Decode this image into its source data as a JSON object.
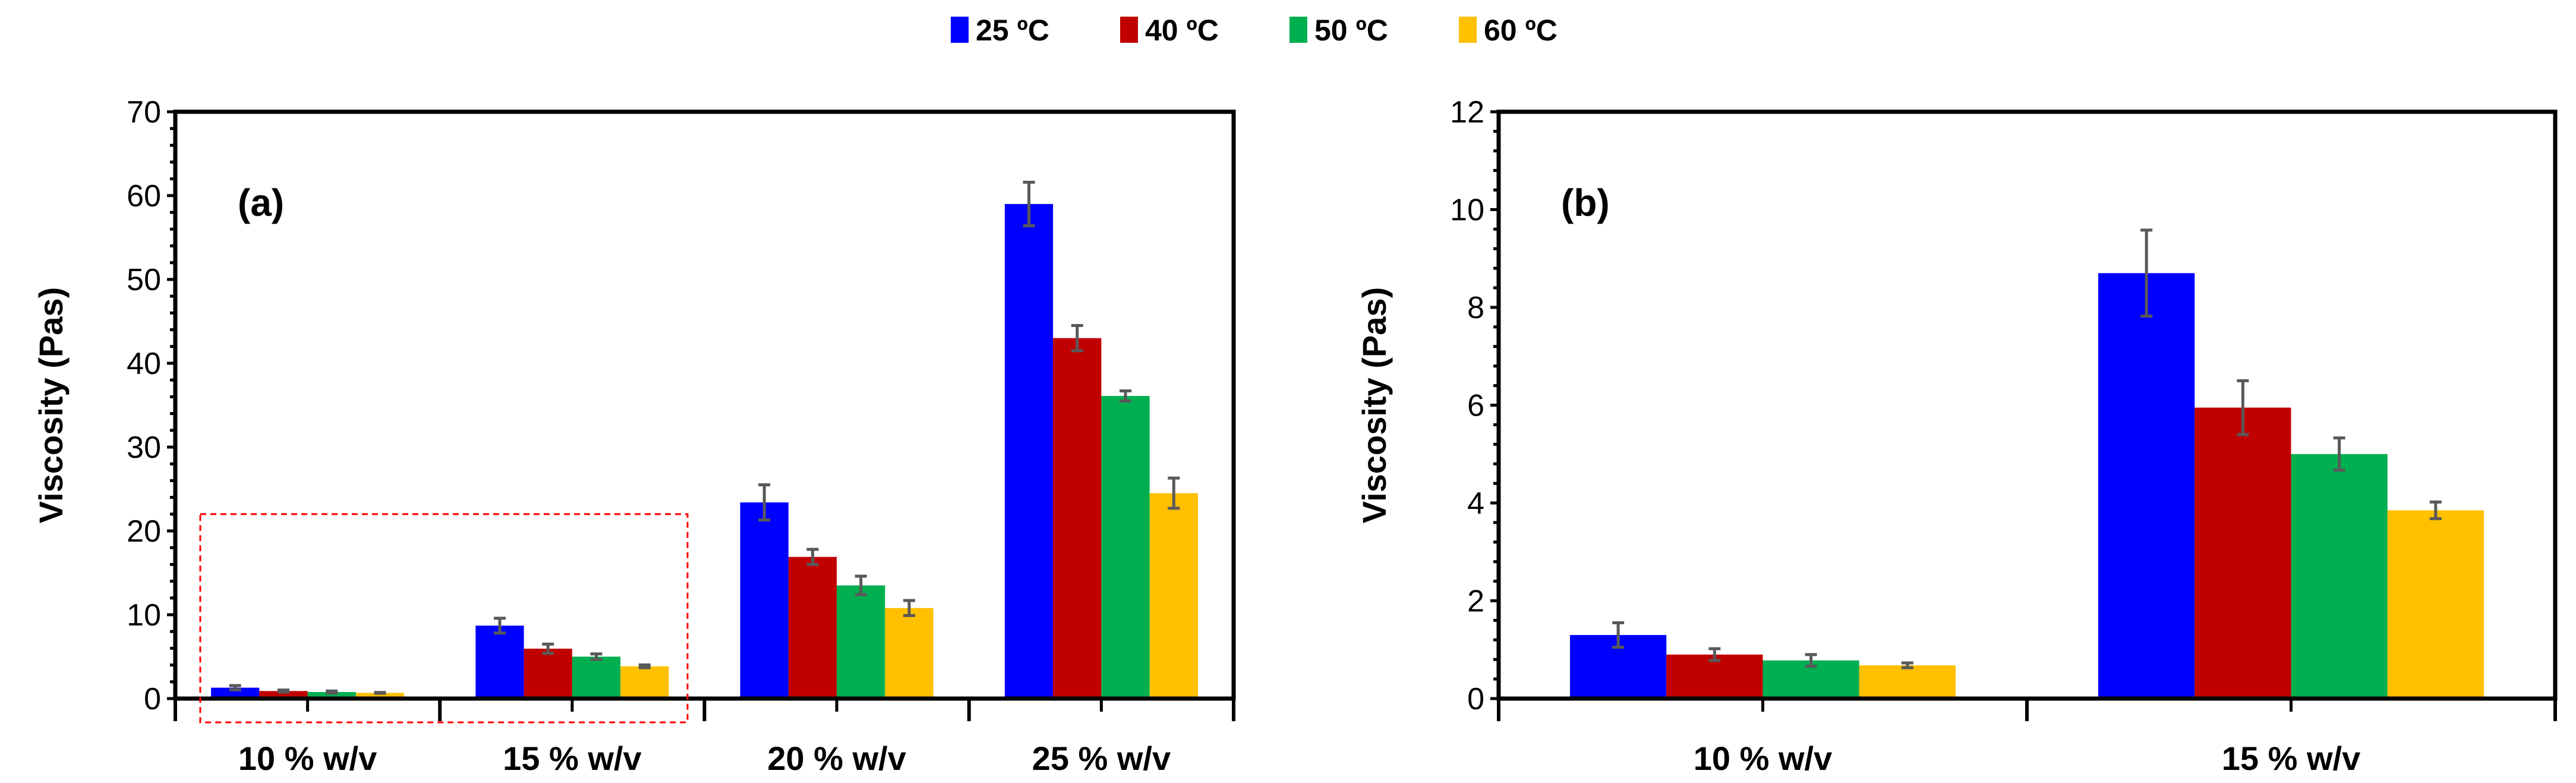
{
  "legend": [
    {
      "label": "25 ºC",
      "color": "#0000FF"
    },
    {
      "label": "40 ºC",
      "color": "#C00000"
    },
    {
      "label": "50 ºC",
      "color": "#00B050"
    },
    {
      "label": "60 ºC",
      "color": "#FFC000"
    }
  ],
  "chart_data": [
    {
      "type": "bar",
      "panel_label": "(a)",
      "ylabel": "Viscosity (Pas)",
      "xlabel": "",
      "ylim": [
        0,
        70
      ],
      "yticks": [
        0,
        10,
        20,
        30,
        40,
        50,
        60,
        70
      ],
      "categories": [
        "10 % w/v",
        "15 % w/v",
        "20 % w/v",
        "25 % w/v"
      ],
      "series": [
        {
          "name": "25 ºC",
          "values": [
            1.3,
            8.7,
            23.4,
            59.0
          ],
          "errors": [
            0.25,
            0.88,
            2.1,
            2.6
          ]
        },
        {
          "name": "40 ºC",
          "values": [
            0.9,
            5.95,
            16.9,
            43.0
          ],
          "errors": [
            0.12,
            0.55,
            0.9,
            1.5
          ]
        },
        {
          "name": "50 ºC",
          "values": [
            0.78,
            5.0,
            13.5,
            36.1
          ],
          "errors": [
            0.12,
            0.33,
            1.1,
            0.6
          ]
        },
        {
          "name": "60 ºC",
          "values": [
            0.68,
            3.85,
            10.8,
            24.5
          ],
          "errors": [
            0.05,
            0.17,
            0.9,
            1.8
          ]
        }
      ],
      "annotation": "dashed red box highlighting 10 % and 15 % w/v"
    },
    {
      "type": "bar",
      "panel_label": "(b)",
      "ylabel": "Viscosity (Pas)",
      "xlabel": "",
      "ylim": [
        0,
        12
      ],
      "yticks": [
        0,
        2,
        4,
        6,
        8,
        10,
        12
      ],
      "categories": [
        "10 % w/v",
        "15 % w/v"
      ],
      "series": [
        {
          "name": "25 ºC",
          "values": [
            1.3,
            8.7
          ],
          "errors": [
            0.25,
            0.88
          ]
        },
        {
          "name": "40 ºC",
          "values": [
            0.9,
            5.95
          ],
          "errors": [
            0.12,
            0.55
          ]
        },
        {
          "name": "50 ºC",
          "values": [
            0.78,
            5.0
          ],
          "errors": [
            0.12,
            0.33
          ]
        },
        {
          "name": "60 ºC",
          "values": [
            0.68,
            3.85
          ],
          "errors": [
            0.05,
            0.17
          ]
        }
      ]
    }
  ]
}
